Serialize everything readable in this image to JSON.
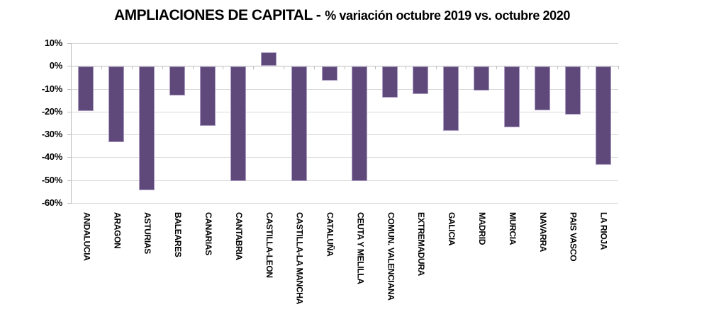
{
  "title": {
    "main": "AMPLIACIONES DE CAPITAL -",
    "sub": "% variación octubre 2019 vs. octubre 2020"
  },
  "chart_data": {
    "type": "bar",
    "title": "AMPLIACIONES DE CAPITAL - % variación octubre 2019 vs. octubre 2020",
    "categories": [
      "ANDALUCIA",
      "ARAGON",
      "ASTURIAS",
      "BALEARES",
      "CANARIAS",
      "CANTABRIA",
      "CASTILLA-LEON",
      "CASTILLA-LA MANCHA",
      "CATALUÑA",
      "CEUTA Y MELILLA",
      "COMUN. VALENCIANA",
      "EXTREMADURA",
      "GALICIA",
      "MADRID",
      "MURCIA",
      "NAVARRA",
      "PAIS VASCO",
      "LA RIOJA"
    ],
    "values": [
      -19.5,
      -33,
      -54,
      -12.5,
      -26,
      -50,
      6,
      -50,
      -6,
      -50,
      -13.5,
      -12,
      -28,
      -10.5,
      -26.5,
      -19,
      -21,
      -43
    ],
    "xlabel": "",
    "ylabel": "",
    "ylim": [
      -60,
      10
    ],
    "yticks": [
      10,
      0,
      -10,
      -20,
      -30,
      -40,
      -50,
      -60
    ],
    "ytick_suffix": "%",
    "grid": true,
    "legend": false,
    "bar_color": "#5F497A",
    "bar_border_color": "#AC9DC3",
    "gridline_color": "#D9D9D9",
    "axis_color": "#BFBFBF",
    "text_color": "#000000"
  }
}
